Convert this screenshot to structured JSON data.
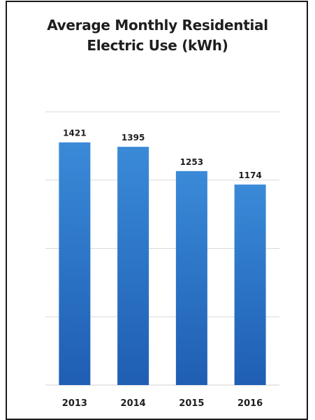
{
  "chart_data": {
    "type": "bar",
    "title_lines": [
      "Average Monthly Residential",
      "Electric Use (kWh)"
    ],
    "categories": [
      "2013",
      "2014",
      "2015",
      "2016"
    ],
    "values": [
      1421,
      1395,
      1253,
      1174
    ],
    "data_labels": [
      "1421",
      "1395",
      "1253",
      "1174"
    ],
    "ylim": [
      0,
      1600
    ],
    "grid": true,
    "legend": "none",
    "bar_color": "#2f7fd0",
    "bar_color_dark": "#1f5eb3",
    "grid_color": "#d9d9d9"
  }
}
